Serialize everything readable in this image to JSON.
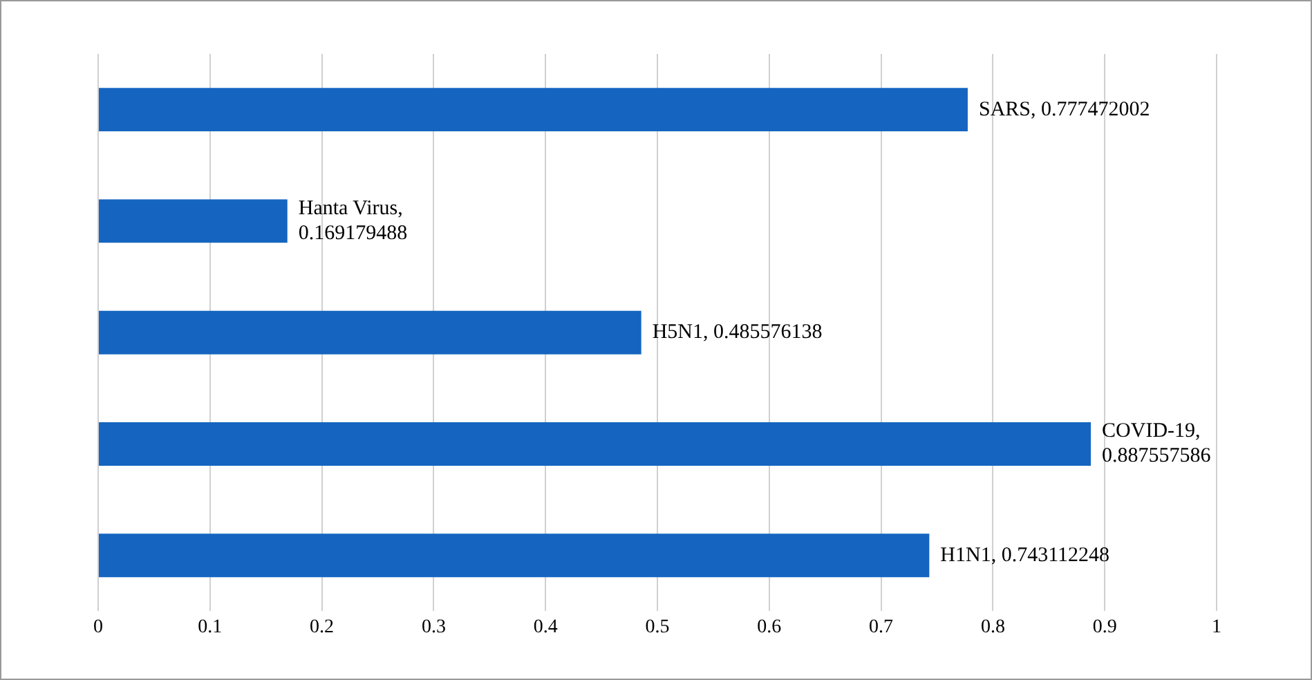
{
  "chart_data": {
    "type": "bar",
    "orientation": "horizontal",
    "categories": [
      null,
      null,
      null,
      null,
      null
    ],
    "values": [
      0.777472002,
      0.169179488,
      0.485576138,
      0.887557586,
      0.743112248
    ],
    "value_labels": [
      "SARS, 0.777472002",
      "Hanta Virus, 0.169179488",
      "H5N1, 0.485576138",
      "COVID-19, 0.887557586",
      "H1N1, 0.743112248"
    ],
    "color": "#1565c0",
    "xlim": [
      0,
      1
    ],
    "xticks": [
      0,
      0.1,
      0.2,
      0.3,
      0.4,
      0.5,
      0.6,
      0.7,
      0.8,
      0.9,
      {
        "value": 1,
        "label": "1"
      }
    ],
    "grid": "x",
    "tick_labels": "x",
    "legend": false
  }
}
